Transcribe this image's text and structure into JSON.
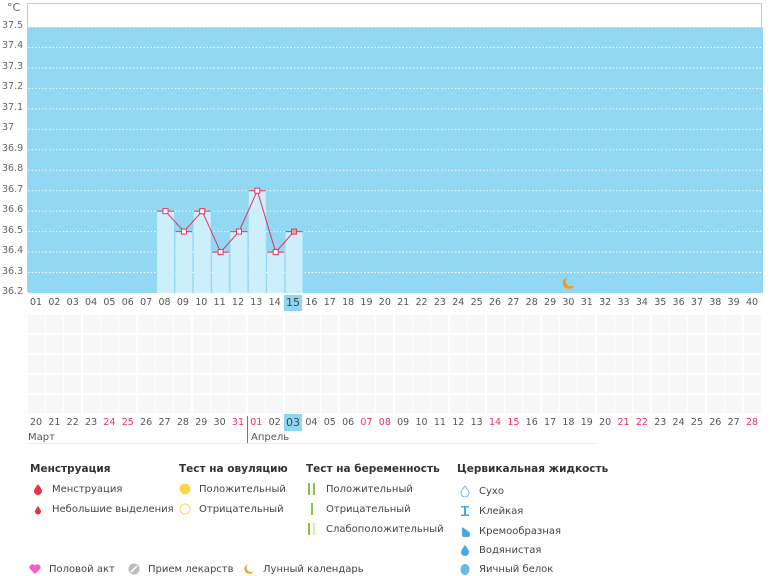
{
  "chart_data": {
    "type": "bar",
    "unit": "°C",
    "ylim": [
      36.2,
      37.5
    ],
    "yticks": [
      "37.5",
      "37.4",
      "37.3",
      "37.2",
      "37.1",
      "37",
      "36.9",
      "36.8",
      "36.7",
      "36.6",
      "36.5",
      "36.4",
      "36.3",
      "36.2"
    ],
    "cycle_days": [
      "01",
      "02",
      "03",
      "04",
      "05",
      "06",
      "07",
      "08",
      "09",
      "10",
      "11",
      "12",
      "13",
      "14",
      "15",
      "16",
      "17",
      "18",
      "19",
      "20",
      "21",
      "22",
      "23",
      "24",
      "25",
      "26",
      "27",
      "28",
      "29",
      "30",
      "31",
      "32",
      "33",
      "34",
      "35",
      "36",
      "37",
      "38",
      "39",
      "40"
    ],
    "temperatures": [
      {
        "day": 8,
        "value": 36.6
      },
      {
        "day": 9,
        "value": 36.5
      },
      {
        "day": 10,
        "value": 36.6
      },
      {
        "day": 11,
        "value": 36.4
      },
      {
        "day": 12,
        "value": 36.5
      },
      {
        "day": 13,
        "value": 36.7
      },
      {
        "day": 14,
        "value": 36.4
      },
      {
        "day": 15,
        "value": 36.5
      }
    ],
    "current_cycle_day": 15,
    "moon_day": 30,
    "dates": [
      "20",
      "21",
      "22",
      "23",
      "24",
      "25",
      "26",
      "27",
      "28",
      "29",
      "30",
      "31",
      "01",
      "02",
      "03",
      "04",
      "05",
      "06",
      "07",
      "08",
      "09",
      "10",
      "11",
      "12",
      "13",
      "14",
      "15",
      "16",
      "17",
      "18",
      "19",
      "20",
      "21",
      "22",
      "23",
      "24",
      "25",
      "26",
      "27",
      "28"
    ],
    "weekend_indices": [
      4,
      5,
      11,
      12,
      18,
      19,
      25,
      26,
      32,
      33,
      39
    ],
    "today_index": 14,
    "months": [
      "Март",
      "Апрель"
    ],
    "colors": {
      "fill": "#92d8f2",
      "bar": "#cdeefb",
      "line": "#e8335f"
    }
  },
  "legend": {
    "menstruation": {
      "title": "Менструация",
      "items": [
        "Менструация",
        "Небольшие выделения"
      ]
    },
    "ovulation": {
      "title": "Тест на овуляцию",
      "items": [
        "Положительный",
        "Отрицательный"
      ]
    },
    "pregnancy": {
      "title": "Тест на беременность",
      "items": [
        "Положительный",
        "Отрицательный",
        "Слабоположительный"
      ]
    },
    "cervical": {
      "title": "Цервикальная жидкость",
      "items": [
        "Сухо",
        "Клейкая",
        "Кремообразная",
        "Водянистая",
        "Яичный белок"
      ]
    },
    "other": [
      "Половой акт",
      "Прием лекарств",
      "Лунный календарь"
    ]
  }
}
